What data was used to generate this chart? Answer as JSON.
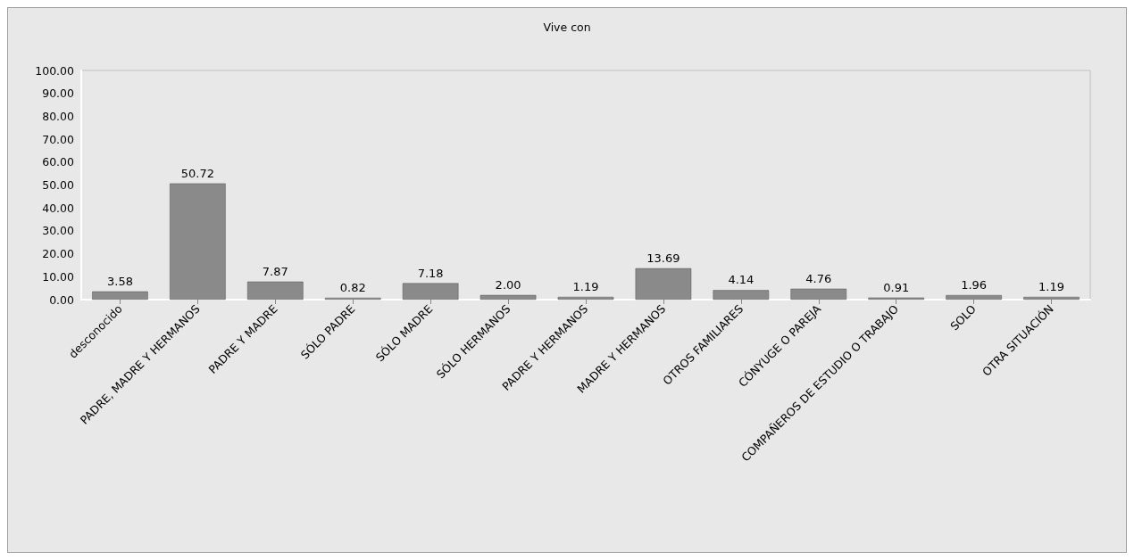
{
  "chart_data": {
    "type": "bar",
    "title": "Vive con",
    "categories": [
      "desconocido",
      "PADRE, MADRE Y HERMANOS",
      "PADRE Y MADRE",
      "SÓLO PADRE",
      "SÓLO MADRE",
      "SÓLO HERMANOS",
      "PADRE Y HERMANOS",
      "MADRE Y HERMANOS",
      "OTROS FAMILIARES",
      "CÓNYUGE O PAREJA",
      "COMPAÑEROS DE ESTUDIO O TRABAJO",
      "SOLO",
      "OTRA SITUACIÓN"
    ],
    "values": [
      3.58,
      50.72,
      7.87,
      0.82,
      7.18,
      2,
      1.19,
      13.69,
      4.14,
      4.76,
      0.91,
      1.96,
      1.19
    ],
    "value_labels": [
      "3.58",
      "50.72",
      "7.87",
      "0.82",
      "7.18",
      "2.00",
      "1.19",
      "13.69",
      "4.14",
      "4.76",
      "0.91",
      "1.96",
      "1.19"
    ],
    "color": "#8a8a8a",
    "ylim": [
      0,
      100
    ],
    "yticks": [
      {
        "value": 0,
        "label": "0.00"
      },
      {
        "value": 10,
        "label": "10.00"
      },
      {
        "value": 20,
        "label": "20.00"
      },
      {
        "value": 30,
        "label": "30.00"
      },
      {
        "value": 40,
        "label": "40.00"
      },
      {
        "value": 50,
        "label": "50.00"
      },
      {
        "value": 60,
        "label": "60.00"
      },
      {
        "value": 70,
        "label": "70.00"
      },
      {
        "value": 80,
        "label": "80.00"
      },
      {
        "value": 90,
        "label": "90.00"
      },
      {
        "value": 100,
        "label": "100.00"
      }
    ],
    "grid": false
  }
}
